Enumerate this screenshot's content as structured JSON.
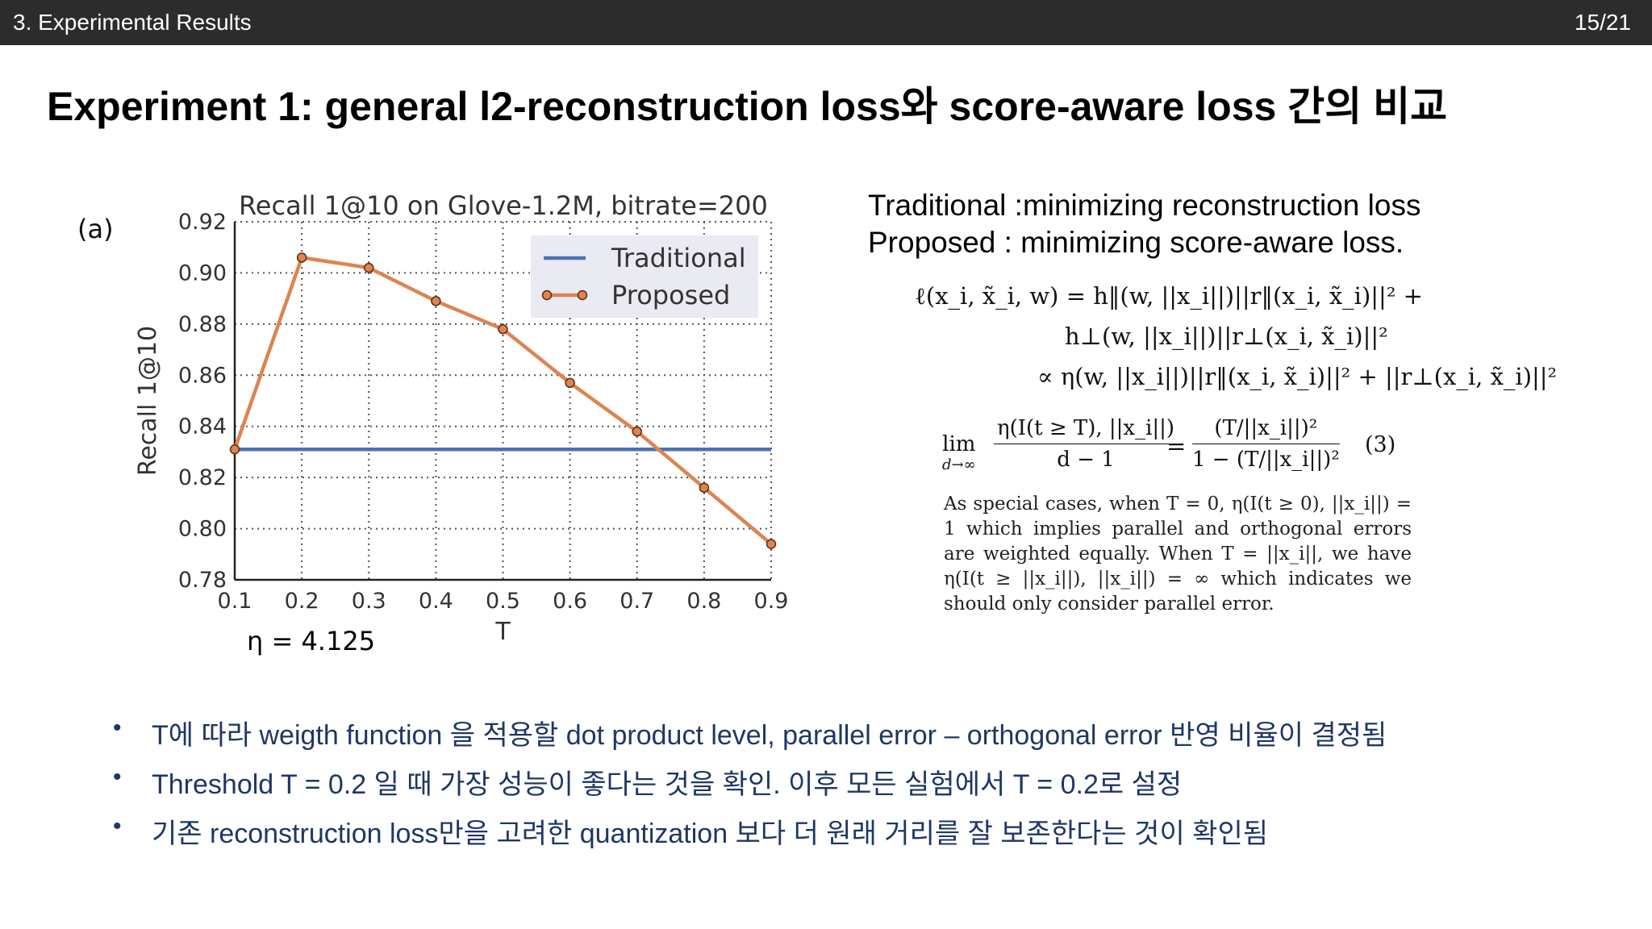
{
  "header": {
    "section": "3. Experimental Results",
    "page": "15/21"
  },
  "title": "Experiment 1: general l2-reconstruction loss와 score-aware loss 간의 비교",
  "figure": {
    "panel_label": "(a)",
    "eta_note": "η = 4.125"
  },
  "chart_data": {
    "type": "line",
    "title": "Recall 1@10 on Glove-1.2M, bitrate=200",
    "xlabel": "T",
    "ylabel": "Recall 1@10",
    "x": [
      0.1,
      0.2,
      0.3,
      0.4,
      0.5,
      0.6,
      0.7,
      0.8,
      0.9
    ],
    "xlim": [
      0.1,
      0.9
    ],
    "ylim": [
      0.78,
      0.92
    ],
    "xticks": [
      "0.1",
      "0.2",
      "0.3",
      "0.4",
      "0.5",
      "0.6",
      "0.7",
      "0.8",
      "0.9"
    ],
    "yticks": [
      "0.78",
      "0.80",
      "0.82",
      "0.84",
      "0.86",
      "0.88",
      "0.90",
      "0.92"
    ],
    "grid": true,
    "legend_position": "top-right",
    "series": [
      {
        "name": "Traditional",
        "color": "#4c72b0",
        "values": [
          0.831,
          0.831,
          0.831,
          0.831,
          0.831,
          0.831,
          0.831,
          0.831,
          0.831
        ]
      },
      {
        "name": "Proposed",
        "color": "#dd8452",
        "values": [
          0.831,
          0.906,
          0.902,
          0.889,
          0.878,
          0.857,
          0.838,
          0.816,
          0.794
        ]
      }
    ]
  },
  "definitions": {
    "traditional": "Traditional :minimizing reconstruction loss",
    "proposed": "Proposed : minimizing score-aware loss."
  },
  "equations": {
    "line1": "ℓ(x_i, x̃_i, w) = h‖(w, ||x_i||)||r‖(x_i, x̃_i)||² +",
    "line2": "h⊥(w, ||x_i||)||r⊥(x_i, x̃_i)||²",
    "line3": "∝ η(w, ||x_i||)||r‖(x_i, x̃_i)||² + ||r⊥(x_i, x̃_i)||²",
    "lim_top": "lim",
    "lim_bottom": "d→∞",
    "frac1_num": "η(I(t ≥ T), ||x_i||)",
    "frac1_den": "d − 1",
    "equals": "=",
    "frac2_num": "(T/||x_i||)²",
    "frac2_den": "1 − (T/||x_i||)²",
    "number": "(3)"
  },
  "special_cases": "As special cases, when T = 0, η(I(t ≥ 0), ||x_i||) = 1 which implies parallel and orthogonal errors are weighted equally. When T = ||x_i||, we have η(I(t ≥ ||x_i||), ||x_i||) = ∞ which indicates we should only consider parallel error.",
  "bullets": [
    "T에 따라 weigth function 을 적용할 dot product level, parallel error – orthogonal error 반영 비율이 결정됨",
    "Threshold T = 0.2 일 때 가장 성능이 좋다는 것을 확인. 이후 모든 실험에서 T = 0.2로 설정",
    "기존 reconstruction loss만을 고려한 quantization 보다 더 원래 거리를 잘 보존한다는 것이 확인됨"
  ]
}
